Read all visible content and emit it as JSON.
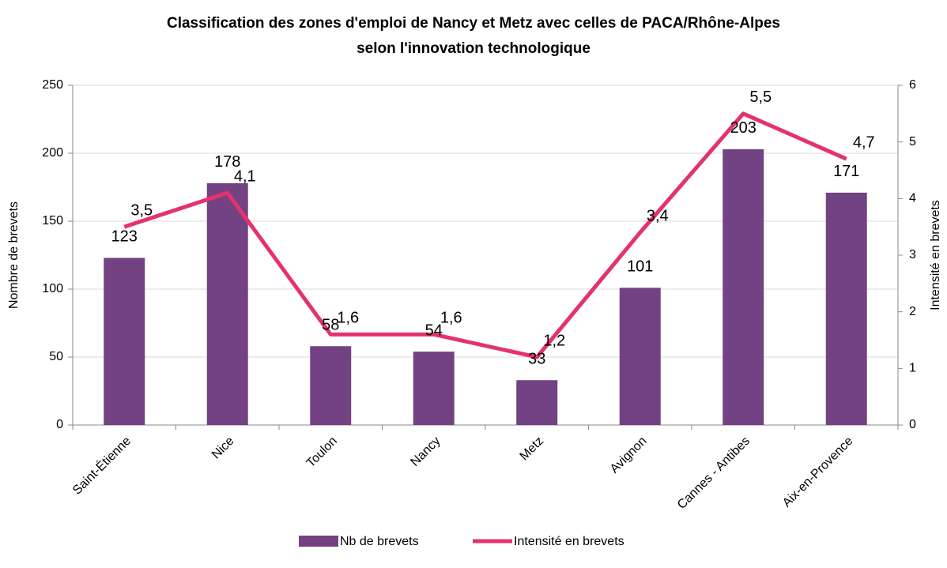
{
  "chart_data": {
    "type": "bar",
    "title": "Classification des zones d'emploi de Nancy et Metz avec celles de PACA/Rhône-Alpes",
    "subtitle": "selon l'innovation technologique",
    "categories": [
      "Saint-Étienne",
      "Nice",
      "Toulon",
      "Nancy",
      "Metz",
      "Avignon",
      "Cannes - Antibes",
      "Aix-en-Provence"
    ],
    "series": [
      {
        "name": "Nb de brevets",
        "type": "bar",
        "color": "#734283",
        "label_color": "#2a7bc0",
        "values": [
          123,
          178,
          58,
          54,
          33,
          101,
          203,
          171
        ]
      },
      {
        "name": "Intensité en brevets",
        "type": "line",
        "axis": "y2",
        "color": "#e4326f",
        "label_color": "#ff0000",
        "values": [
          3.5,
          4.1,
          1.6,
          1.6,
          1.2,
          3.4,
          5.5,
          4.7
        ],
        "value_labels": [
          "3,5",
          "4,1",
          "1,6",
          "1,6",
          "1,2",
          "3,4",
          "5,5",
          "4,7"
        ]
      }
    ],
    "ylabel": "Nombre de brevets",
    "y2label": "Intensité en brevets",
    "ylim": [
      0,
      250
    ],
    "yticks": [
      0,
      50,
      100,
      150,
      200,
      250
    ],
    "y2lim": [
      0,
      6
    ],
    "y2ticks": [
      0,
      1,
      2,
      3,
      4,
      5,
      6
    ],
    "grid": true,
    "legend": "bottom"
  }
}
